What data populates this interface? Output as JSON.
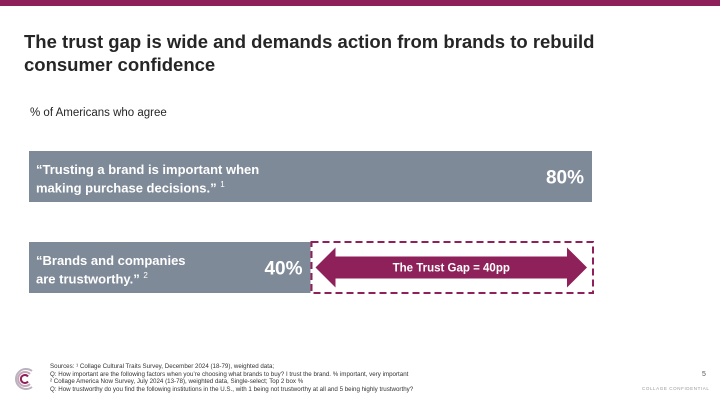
{
  "colors": {
    "accent": "#8e2159",
    "bar": "#7f8a98",
    "text": "#262626"
  },
  "header": {
    "title": "The trust gap is wide and demands action from brands to rebuild consumer confidence"
  },
  "chart_data": {
    "type": "bar",
    "orientation": "horizontal",
    "subtitle": "% of Americans who agree",
    "categories": [
      {
        "text": "“Trusting a brand is important when making purchase decisions.”",
        "footnote": "1"
      },
      {
        "text": "“Brands and companies are trustworthy.”",
        "footnote": "2"
      }
    ],
    "values": [
      80,
      40
    ],
    "value_labels": [
      "80%",
      "40%"
    ],
    "xlim": [
      0,
      80
    ],
    "gap": {
      "label": "The Trust Gap = 40pp",
      "from": 40,
      "to": 80
    }
  },
  "footer": {
    "lines": [
      "Sources: ¹ Collage Cultural Traits Survey, December 2024 (18-79), weighted data;",
      "Q: How important are the following factors when you’re choosing what brands to buy? I trust the brand. % important, very important",
      "² Collage America Now Survey, July 2024 (13-78), weighted data, Single-select; Top 2 box %",
      "Q: How trustworthy do you find the following institutions in the U.S., with 1 being not trustworthy at all and 5 being highly trustworthy?"
    ],
    "page_number": "5",
    "confidential": "COLLAGE CONFIDENTIAL"
  },
  "logo": {
    "icon": "collage-logo-icon"
  }
}
